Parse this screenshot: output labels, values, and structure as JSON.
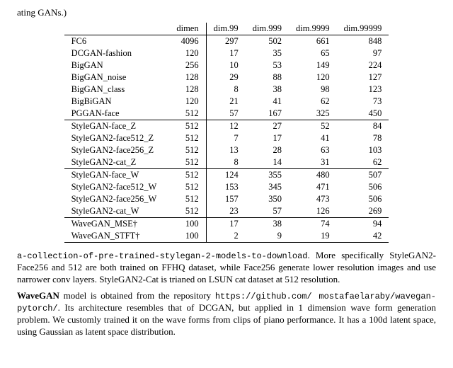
{
  "fragment_top": "ating GANs.)",
  "table": {
    "headers": [
      "",
      "dimen",
      "dim.99",
      "dim.999",
      "dim.9999",
      "dim.99999"
    ],
    "sections": [
      [
        {
          "name": "FC6",
          "dimen": 4096,
          "d99": 297,
          "d999": 502,
          "d9999": 661,
          "d99999": 848
        },
        {
          "name": "DCGAN-fashion",
          "dimen": 120,
          "d99": 17,
          "d999": 35,
          "d9999": 65,
          "d99999": 97
        },
        {
          "name": "BigGAN",
          "dimen": 256,
          "d99": 10,
          "d999": 53,
          "d9999": 149,
          "d99999": 224
        },
        {
          "name": "BigGAN_noise",
          "dimen": 128,
          "d99": 29,
          "d999": 88,
          "d9999": 120,
          "d99999": 127
        },
        {
          "name": "BigGAN_class",
          "dimen": 128,
          "d99": 8,
          "d999": 38,
          "d9999": 98,
          "d99999": 123
        },
        {
          "name": "BigBiGAN",
          "dimen": 120,
          "d99": 21,
          "d999": 41,
          "d9999": 62,
          "d99999": 73
        },
        {
          "name": "PGGAN-face",
          "dimen": 512,
          "d99": 57,
          "d999": 167,
          "d9999": 325,
          "d99999": 450
        }
      ],
      [
        {
          "name": "StyleGAN-face_Z",
          "dimen": 512,
          "d99": 12,
          "d999": 27,
          "d9999": 52,
          "d99999": 84
        },
        {
          "name": "StyleGAN2-face512_Z",
          "dimen": 512,
          "d99": 7,
          "d999": 17,
          "d9999": 41,
          "d99999": 78
        },
        {
          "name": "StyleGAN2-face256_Z",
          "dimen": 512,
          "d99": 13,
          "d999": 28,
          "d9999": 63,
          "d99999": 103
        },
        {
          "name": "StyleGAN2-cat_Z",
          "dimen": 512,
          "d99": 8,
          "d999": 14,
          "d9999": 31,
          "d99999": 62
        }
      ],
      [
        {
          "name": "StyleGAN-face_W",
          "dimen": 512,
          "d99": 124,
          "d999": 355,
          "d9999": 480,
          "d99999": 507
        },
        {
          "name": "StyleGAN2-face512_W",
          "dimen": 512,
          "d99": 153,
          "d999": 345,
          "d9999": 471,
          "d99999": 506
        },
        {
          "name": "StyleGAN2-face256_W",
          "dimen": 512,
          "d99": 157,
          "d999": 350,
          "d9999": 473,
          "d99999": 506
        },
        {
          "name": "StyleGAN2-cat_W",
          "dimen": 512,
          "d99": 23,
          "d999": 57,
          "d9999": 126,
          "d99999": 269
        }
      ],
      [
        {
          "name": "WaveGAN_MSE†",
          "dimen": 100,
          "d99": 17,
          "d999": 38,
          "d9999": 74,
          "d99999": 94
        },
        {
          "name": "WaveGAN_STFT†",
          "dimen": 100,
          "d99": 2,
          "d999": 9,
          "d9999": 19,
          "d99999": 42
        }
      ]
    ]
  },
  "p1_mono": "a-collection-of-pre-trained-stylegan-2-models-to-download",
  "p1_rest": ". More specifically StyleGAN2-Face256 and 512 are both trained on FFHQ dataset, while Face256 generate lower resolution images and use narrower conv layers. StyleGAN2-Cat is trianed on LSUN cat dataset at 512 resolution.",
  "p2_lead": "WaveGAN",
  "p2_a": " model is obtained from the repository ",
  "p2_mono": "https://github.com/ mostafaelaraby/wavegan-pytorch/",
  "p2_b": ". Its architecture resembles that of DCGAN, but applied in 1 dimension wave form generation problem. We customly trained it on the wave forms from clips of piano performance. It has a 100d latent space, using Gaussian as latent space distribution."
}
